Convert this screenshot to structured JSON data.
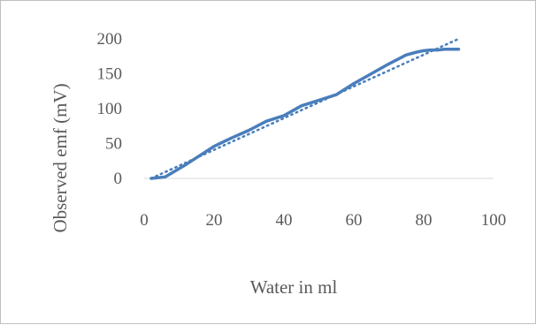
{
  "chart_data": {
    "type": "line",
    "title": "",
    "xlabel": "Water in ml",
    "ylabel": "Observed emf (mV)",
    "xlim": [
      0,
      100
    ],
    "ylim": [
      0,
      200
    ],
    "xticks": [
      "0",
      "20",
      "40",
      "60",
      "80",
      "100"
    ],
    "yticks": [
      "0",
      "50",
      "100",
      "150",
      "200"
    ],
    "grid": false,
    "legend": "none",
    "series": [
      {
        "style": "solid",
        "color": "#4a7ebb",
        "x": [
          2,
          6,
          12,
          20,
          25,
          30,
          35,
          40,
          45,
          50,
          55,
          60,
          65,
          70,
          75,
          78,
          80,
          82,
          84,
          86,
          88,
          90
        ],
        "y": [
          0,
          2,
          20,
          46,
          58,
          69,
          82,
          90,
          104,
          112,
          120,
          136,
          150,
          164,
          177,
          181,
          183,
          184,
          184,
          185,
          185,
          185
        ]
      },
      {
        "style": "dotted",
        "color": "#4a7ebb",
        "x": [
          2,
          90
        ],
        "y": [
          0,
          200
        ]
      }
    ]
  }
}
